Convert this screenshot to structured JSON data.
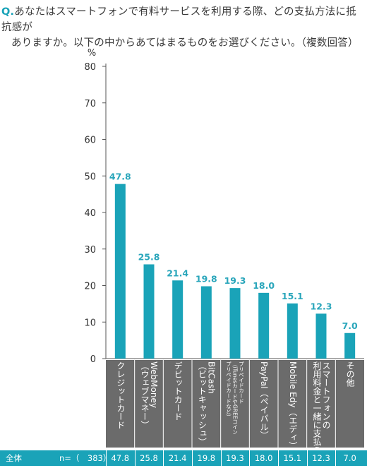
{
  "question": {
    "prefix": "Q.",
    "line1": "あなたはスマートフォンで有料サービスを利用する際、どの支払方法に抵抗感が",
    "line2": "ありますか。以下の中からあてはまるものをお選びください。（複数回答）"
  },
  "chart_data": {
    "type": "bar",
    "ylabel": "%",
    "ylim": [
      0,
      80
    ],
    "yticks": [
      "0",
      "10",
      "20",
      "30",
      "40",
      "50",
      "60",
      "70",
      "80"
    ],
    "categories": [
      "クレジットカード",
      "WebMoney（ウェブマネー）",
      "デビットカード",
      "BitCash（ビットキャッシュ）",
      "プリペイドカード（iTunesカードやGREEコインプリペイドカードなど）",
      "PayPal（ペイパル）",
      "Mobile Edy（エディ）",
      "スマートフォンの利用料金と一緒に支払う",
      "その他"
    ],
    "category_lines": [
      [
        "クレジットカード"
      ],
      [
        "WebMoney",
        "（ウェブマネー）"
      ],
      [
        "デビットカード"
      ],
      [
        "BitCash",
        "（ビットキャッシュ）"
      ],
      [
        "プリペイドカード",
        "（iTunesカードやGREEコイン",
        "プリペイドカードなど）"
      ],
      [
        "PayPal（ペイパル）"
      ],
      [
        "Mobile Edy（エディ）"
      ],
      [
        "スマートフォンの",
        "利用料金と一緒に支払う"
      ],
      [
        "その他"
      ]
    ],
    "values": [
      47.8,
      25.8,
      21.4,
      19.8,
      19.3,
      18.0,
      15.1,
      12.3,
      7.0
    ],
    "value_labels": [
      "47.8",
      "25.8",
      "21.4",
      "19.8",
      "19.3",
      "18.0",
      "15.1",
      "12.3",
      "7.0"
    ],
    "bar_color": "#1aa3b8",
    "label_color": "#2aa6bb",
    "grid": false
  },
  "table": {
    "row_label": "全体",
    "n_label": "n=（　383）",
    "values": [
      "47.8",
      "25.8",
      "21.4",
      "19.8",
      "19.3",
      "18.0",
      "15.1",
      "12.3",
      "7.0"
    ],
    "background": "#1aa3b8"
  }
}
